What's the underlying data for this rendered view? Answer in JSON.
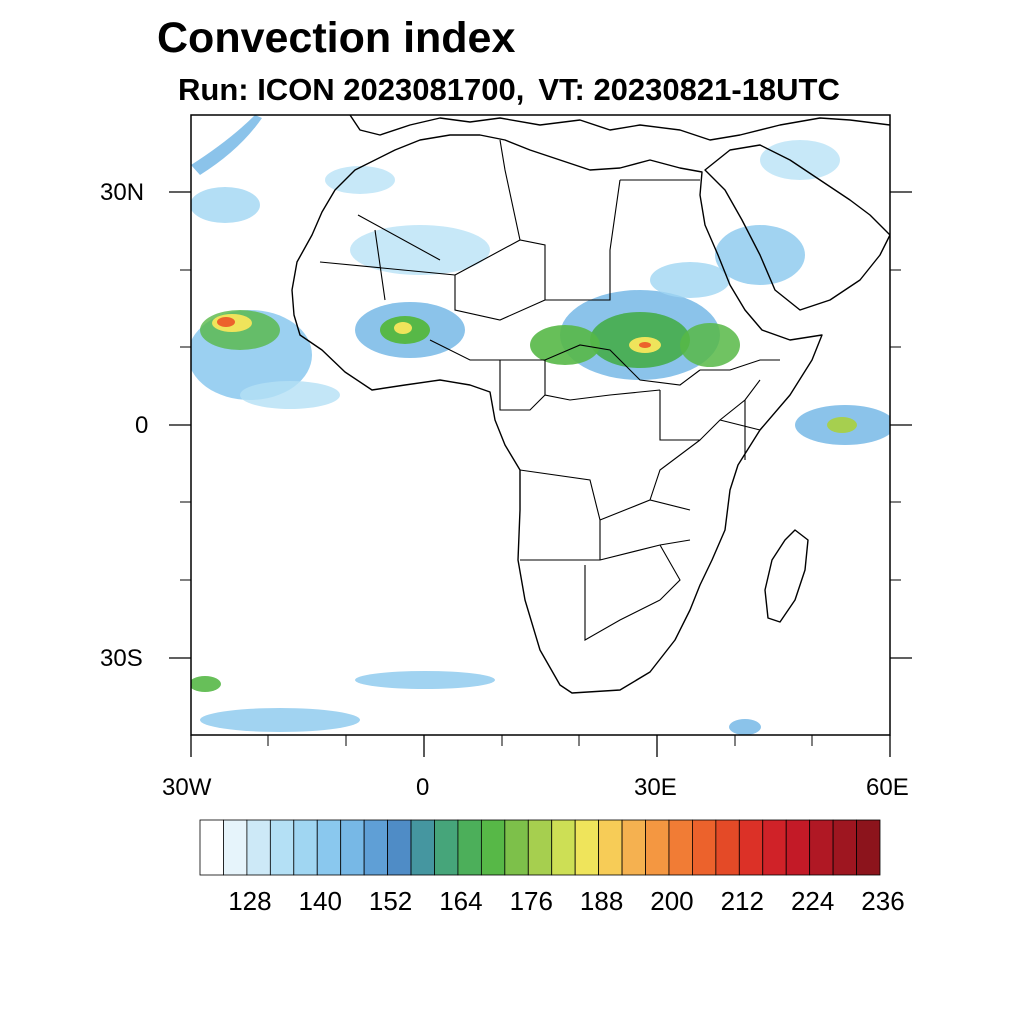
{
  "header": {
    "title": "Convection index",
    "run_label": "Run: ICON 2023081700,",
    "vt_label": "VT: 20230821-18UTC"
  },
  "axes": {
    "lat_labels": [
      "30N",
      "0",
      "30S"
    ],
    "lon_labels": [
      "30W",
      "0",
      "30E",
      "60E"
    ]
  },
  "colorbar": {
    "tick_labels": [
      "128",
      "140",
      "152",
      "164",
      "176",
      "188",
      "200",
      "212",
      "224",
      "236"
    ],
    "colors": [
      "#ffffff",
      "#e6f4fb",
      "#cde9f7",
      "#b4e0f5",
      "#a0d6f2",
      "#8ac8ee",
      "#77b8e6",
      "#5f9fd6",
      "#4f8cc6",
      "#4596a0",
      "#46a57a",
      "#4caf5a",
      "#57b847",
      "#7dc04a",
      "#a6cf4f",
      "#cddf55",
      "#efe45b",
      "#f7cc57",
      "#f5b150",
      "#f49741",
      "#f17c35",
      "#ec622c",
      "#e44a27",
      "#dc3127",
      "#d02228",
      "#c31a27",
      "#b01824",
      "#9e1620",
      "#8c141c"
    ]
  },
  "map": {
    "projection": "cylindrical equidistant",
    "lon_range": [
      -30,
      60
    ],
    "lat_range": [
      -40,
      40
    ]
  }
}
